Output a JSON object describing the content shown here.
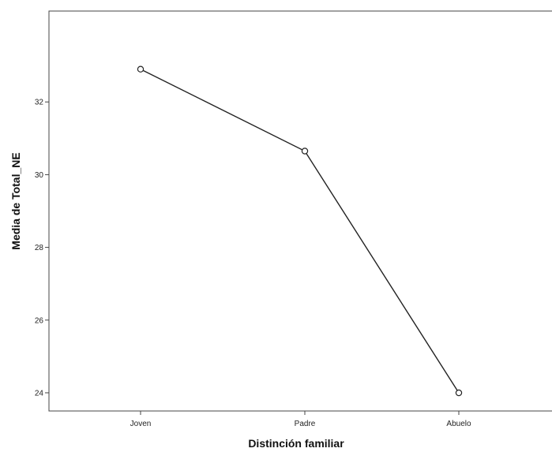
{
  "chart_data": {
    "type": "line",
    "title": "",
    "xlabel": "Distinción familiar",
    "ylabel": "Media de Total_NE",
    "categories": [
      "Joven",
      "Padre",
      "Abuelo"
    ],
    "series": [
      {
        "values": [
          32.9,
          30.65,
          24.0
        ]
      }
    ],
    "ylim": [
      23.5,
      34.5
    ],
    "yticks": [
      24,
      26,
      28,
      30,
      32
    ],
    "grid": false,
    "marker": "open-circle",
    "line_color": "#222222"
  }
}
